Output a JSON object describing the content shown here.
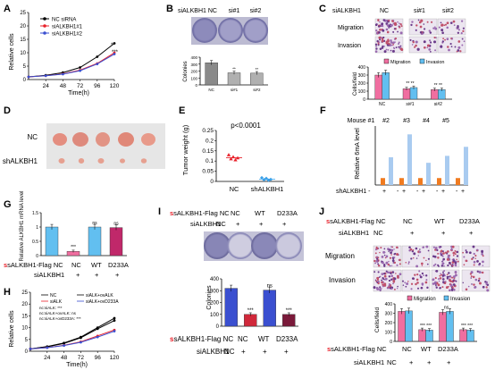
{
  "panels": {
    "A": {
      "letter": "A",
      "ylabel": "Relative cells",
      "xlabel": "Time(h)",
      "legend": [
        "NC siRNA",
        "siALKBH1#1",
        "siALKBH1#2"
      ],
      "xticks": [
        "24",
        "48",
        "72",
        "96",
        "120"
      ],
      "yticks": [
        "0",
        "5",
        "10",
        "15",
        "20",
        "25"
      ],
      "sig": [
        "**",
        "***"
      ]
    },
    "B": {
      "letter": "B",
      "conditions": [
        "siALKBH1 NC",
        "si#1",
        "si#2"
      ],
      "ylabel": "Colonies",
      "yticks": [
        "0",
        "100",
        "200",
        "300",
        "400"
      ],
      "xticks": [
        "NC",
        "si#1",
        "si#2"
      ],
      "sig": [
        "**",
        "**"
      ]
    },
    "C": {
      "letter": "C",
      "conditions": [
        "siALKBH1",
        "NC",
        "si#1",
        "si#2"
      ],
      "rows": [
        "Migration",
        "Invasion"
      ],
      "legend": [
        "Migration",
        "Invasion"
      ],
      "ylabel": "Cells/field",
      "yticks": [
        "0",
        "100",
        "200",
        "300",
        "400"
      ],
      "xticks": [
        "NC",
        "si#1",
        "si#2"
      ],
      "sig": [
        "**",
        "**",
        "**",
        "**"
      ]
    },
    "D": {
      "letter": "D",
      "rows": [
        "NC",
        "shALKBH1"
      ]
    },
    "E": {
      "letter": "E",
      "ylabel": "Tumor weight (g)",
      "pvalue": "p<0.0001",
      "yticks": [
        "0",
        "0.05",
        "0.1",
        "0.15",
        "0.2",
        "0.25"
      ],
      "xticks": [
        "NC",
        "shALKBH1"
      ]
    },
    "F": {
      "letter": "F",
      "mice": [
        "Mouse #1",
        "#2",
        "#3",
        "#4",
        "#5"
      ],
      "ylabel": "Relative 6mA level",
      "rowlabel": "shALKBH1 -",
      "signs": [
        "+",
        "-",
        "+",
        "-",
        "+",
        "-",
        "+",
        "-",
        "+"
      ]
    },
    "G": {
      "letter": "G",
      "ylabel": "Relative ALKBH1 mRNA level",
      "yticks": [
        "0",
        "0.5",
        "1",
        "1.5"
      ],
      "sig": [
        "***",
        "ns",
        "ns"
      ],
      "row1": [
        "sALKBH1-Flag NC",
        "NC",
        "WT",
        "D233A"
      ],
      "row2": [
        "siALKBH1",
        "-",
        "+",
        "+",
        "+"
      ]
    },
    "H": {
      "letter": "H",
      "ylabel": "Relative cells",
      "xlabel": "Time(h)",
      "legend": [
        "NC",
        "siALK+ovALK",
        "siALK",
        "siALK+ovD233A"
      ],
      "stats": [
        "nc:siALK: ***",
        "nc:siALK+ovALK: ns",
        "nc:siALK+ovD233A: ***"
      ],
      "xticks": [
        "24",
        "48",
        "72",
        "96",
        "120"
      ],
      "yticks": [
        "0",
        "5",
        "10",
        "15",
        "20",
        "25"
      ]
    },
    "I": {
      "letter": "I",
      "row1": [
        "sALKBH1-Flag NC",
        "NC",
        "WT",
        "D233A"
      ],
      "row2": [
        "siALKBH1",
        "NC",
        "+",
        "+",
        "+"
      ],
      "ylabel": "Colonies",
      "yticks": [
        "0",
        "100",
        "200",
        "300",
        "400"
      ],
      "sig": [
        "***",
        "ns",
        "***"
      ],
      "xrow1": [
        "sALKBH1-Flag NC",
        "NC",
        "WT",
        "D233A"
      ],
      "xrow2": [
        "siALKBH1",
        "NC",
        "+",
        "+",
        "+"
      ]
    },
    "J": {
      "letter": "J",
      "row1": [
        "sALKBH1-Flag NC",
        "NC",
        "WT",
        "D233A"
      ],
      "row2": [
        "siALKBH1",
        "NC",
        "+",
        "+",
        "+"
      ],
      "rows": [
        "Migration",
        "Invasion"
      ],
      "legend": [
        "Migration",
        "Invasion"
      ],
      "ylabel": "Cells/field",
      "yticks": [
        "0",
        "100",
        "200",
        "300",
        "400"
      ],
      "sig": [
        "***",
        "***",
        "ns",
        "***",
        "***"
      ],
      "xrow1": [
        "sALKBH1-Flag NC",
        "NC",
        "WT",
        "D233A"
      ],
      "xrow2": [
        "siALKBH1",
        "NC",
        "+",
        "+",
        "+"
      ]
    }
  },
  "colors": {
    "red": "#e8212a",
    "blue": "#3a4fd0",
    "pink": "#f06ea0",
    "lightblue": "#62bff0",
    "sky": "#a9cbf0",
    "orange": "#f07b20",
    "dishbg": "#d8d6e6",
    "dishring": "#7a78a8",
    "tumor": "#e89a8a"
  },
  "chart_data": [
    {
      "panel": "A",
      "type": "line",
      "x": [
        0,
        24,
        48,
        72,
        96,
        120
      ],
      "ylabel": "Relative cells",
      "xlabel": "Time(h)",
      "ylim": [
        0,
        25
      ],
      "series": [
        {
          "name": "NC siRNA",
          "values": [
            1,
            1.6,
            2.6,
            4.5,
            8.5,
            13.5
          ]
        },
        {
          "name": "siALKBH1#1",
          "values": [
            1,
            1.4,
            2.1,
            3.5,
            6,
            10
          ]
        },
        {
          "name": "siALKBH1#2",
          "values": [
            1,
            1.4,
            2,
            3.3,
            5.8,
            9.5
          ]
        }
      ]
    },
    {
      "panel": "B",
      "type": "bar",
      "categories": [
        "NC",
        "si#1",
        "si#2"
      ],
      "ylabel": "Colonies",
      "ylim": [
        0,
        400
      ],
      "values": [
        320,
        175,
        170
      ]
    },
    {
      "panel": "C",
      "type": "bar",
      "categories": [
        "NC",
        "si#1",
        "si#2"
      ],
      "ylabel": "Cells/field",
      "ylim": [
        0,
        400
      ],
      "series": [
        {
          "name": "Migration",
          "values": [
            300,
            130,
            120
          ]
        },
        {
          "name": "Invasion",
          "values": [
            330,
            145,
            120
          ]
        }
      ]
    },
    {
      "panel": "E",
      "type": "scatter",
      "categories": [
        "NC",
        "shALKBH1"
      ],
      "ylabel": "Tumor weight (g)",
      "ylim": [
        0,
        0.25
      ],
      "series": [
        {
          "values": [
            0.13,
            0.12,
            0.115,
            0.11,
            0.105
          ]
        },
        {
          "values": [
            0.018,
            0.015,
            0.01,
            0.008,
            0.006
          ]
        }
      ]
    },
    {
      "panel": "F",
      "type": "bar",
      "categories": [
        "#1 -",
        "#1 +",
        "#2 -",
        "#2 +",
        "#3 -",
        "#3 +",
        "#4 -",
        "#4 +",
        "#5 -",
        "#5 +"
      ],
      "ylabel": "Relative 6mA level",
      "values": [
        1,
        4,
        1,
        7.3,
        1,
        3.2,
        1,
        4.2,
        1,
        5.5
      ]
    },
    {
      "panel": "G",
      "type": "bar",
      "categories": [
        "NC -",
        "NC +",
        "WT +",
        "D233A +"
      ],
      "ylabel": "Relative ALKBH1 mRNA level",
      "ylim": [
        0,
        1.5
      ],
      "values": [
        1.0,
        0.15,
        1.0,
        0.98
      ]
    },
    {
      "panel": "H",
      "type": "line",
      "x": [
        0,
        24,
        48,
        72,
        96,
        120
      ],
      "ylabel": "Relative cells",
      "xlabel": "Time(h)",
      "ylim": [
        0,
        25
      ],
      "series": [
        {
          "name": "NC",
          "values": [
            1,
            2,
            3.5,
            6,
            10,
            14
          ]
        },
        {
          "name": "siALK+ovALK",
          "values": [
            1,
            1.9,
            3.3,
            5.7,
            9.5,
            13
          ]
        },
        {
          "name": "siALK",
          "values": [
            1,
            1.5,
            2.5,
            4,
            6.5,
            9
          ]
        },
        {
          "name": "siALK+ovD233A",
          "values": [
            1,
            1.5,
            2.4,
            3.8,
            6,
            8.5
          ]
        }
      ]
    },
    {
      "panel": "I",
      "type": "bar",
      "categories": [
        "NC -",
        "NC +",
        "WT +",
        "D233A +"
      ],
      "ylabel": "Colonies",
      "ylim": [
        0,
        400
      ],
      "values": [
        320,
        100,
        305,
        100
      ]
    },
    {
      "panel": "J",
      "type": "bar",
      "categories": [
        "NC -",
        "NC +",
        "WT +",
        "D233A +"
      ],
      "ylabel": "Cells/field",
      "ylim": [
        0,
        400
      ],
      "series": [
        {
          "name": "Migration",
          "values": [
            320,
            125,
            310,
            125
          ]
        },
        {
          "name": "Invasion",
          "values": [
            325,
            120,
            320,
            120
          ]
        }
      ]
    }
  ]
}
